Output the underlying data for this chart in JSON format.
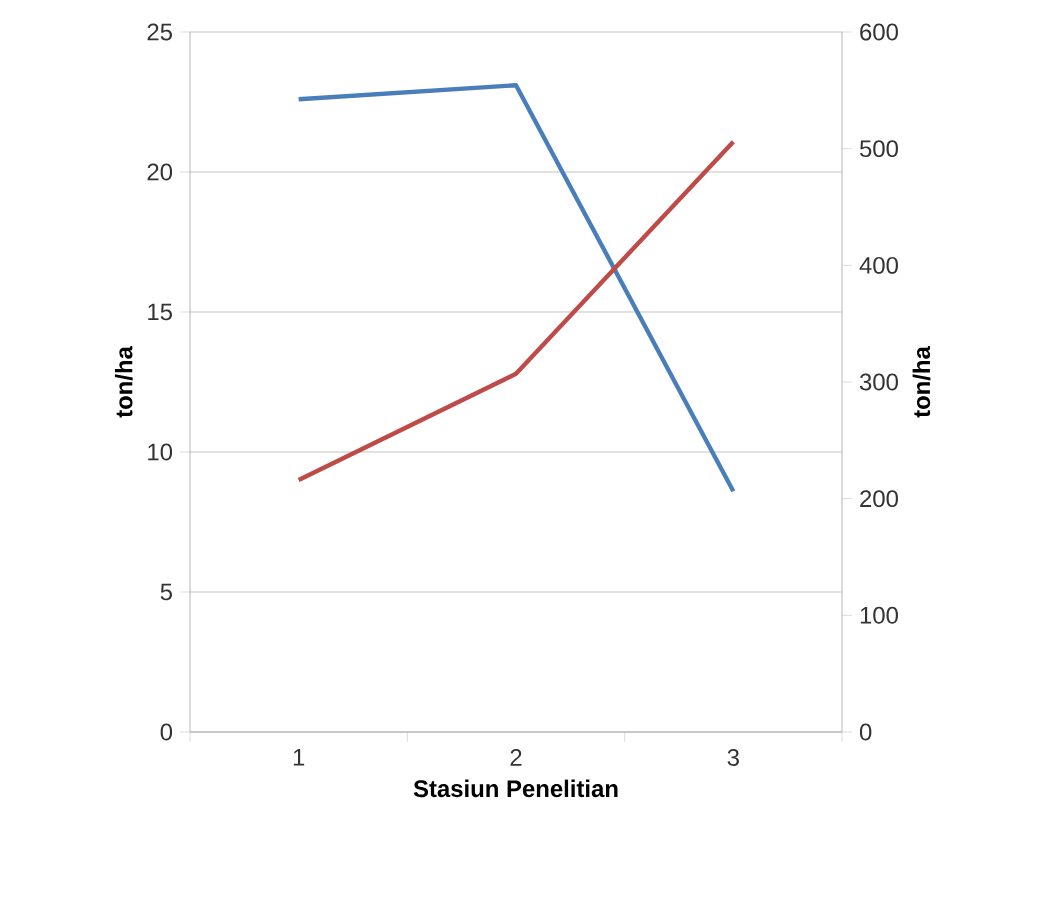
{
  "chart_data": {
    "type": "line",
    "xlabel": "Stasiun Penelitian",
    "ylabel": "ton/ha",
    "y2label": "ton/ha",
    "categories": [
      "1",
      "2",
      "3"
    ],
    "series": [
      {
        "color": "#4a7ebb",
        "values": [
          22.6,
          23.1,
          8.6
        ]
      },
      {
        "color": "#be4b48",
        "values": [
          216,
          307,
          506
        ],
        "axis": "y2"
      }
    ],
    "ylim": [
      0,
      25
    ],
    "yticks": [
      0,
      5,
      10,
      15,
      20,
      25
    ],
    "y2lim": [
      0,
      600
    ],
    "y2ticks": [
      0,
      100,
      200,
      300,
      400,
      500,
      600
    ],
    "grid": "y",
    "line_style": "solid"
  }
}
